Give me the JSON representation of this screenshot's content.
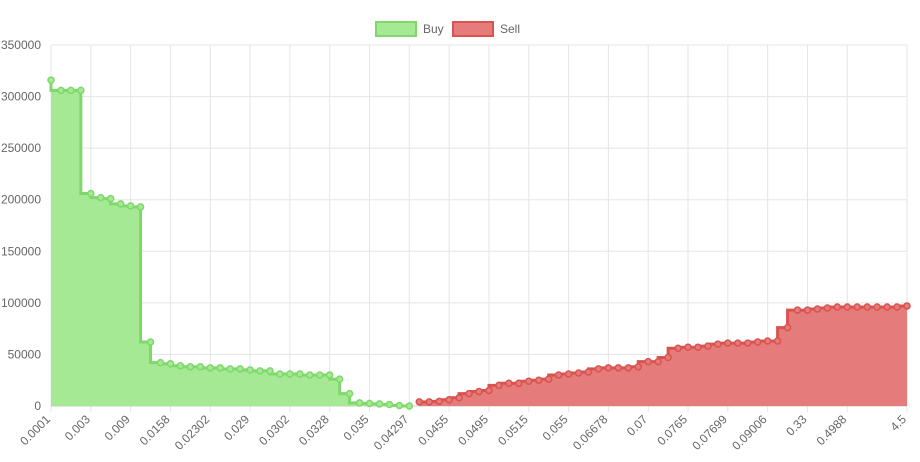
{
  "chart_data": {
    "type": "stepped-area",
    "categories": [
      "0.0001",
      null,
      null,
      null,
      "0.003",
      null,
      null,
      null,
      "0.009",
      null,
      null,
      null,
      "0.0158",
      null,
      null,
      null,
      "0.02302",
      null,
      null,
      null,
      "0.029",
      null,
      null,
      null,
      "0.0302",
      null,
      null,
      null,
      "0.0328",
      null,
      null,
      null,
      "0.035",
      null,
      null,
      null,
      "0.04297",
      null,
      null,
      null,
      "0.0455",
      null,
      null,
      null,
      "0.0495",
      null,
      null,
      null,
      "0.0515",
      null,
      null,
      null,
      "0.055",
      null,
      null,
      null,
      "0.06678",
      null,
      null,
      null,
      "0.07",
      null,
      null,
      null,
      "0.0765",
      null,
      null,
      null,
      "0.07699",
      null,
      null,
      null,
      "0.09006",
      null,
      null,
      null,
      "0.33",
      null,
      null,
      null,
      "0.4988",
      null,
      null,
      null,
      null,
      null,
      "4.5"
    ],
    "series": [
      {
        "name": "Buy",
        "color": "#7fd86b",
        "fill": "#a5e994",
        "values": [
          316000,
          306000,
          306000,
          306000,
          206000,
          202000,
          201000,
          196000,
          194000,
          193000,
          62000,
          42000,
          41000,
          39000,
          38000,
          38000,
          37000,
          37000,
          36000,
          36000,
          35000,
          34000,
          34000,
          31000,
          31000,
          31000,
          30000,
          30000,
          30000,
          26000,
          12000,
          3000,
          2500,
          2000,
          1500,
          500,
          0,
          null,
          null,
          null,
          null,
          null,
          null,
          null,
          null,
          null,
          null,
          null,
          null,
          null,
          null,
          null,
          null,
          null,
          null,
          null,
          null,
          null,
          null,
          null,
          null,
          null,
          null,
          null,
          null,
          null,
          null,
          null,
          null,
          null,
          null,
          null,
          null,
          null,
          null,
          null,
          null,
          null,
          null,
          null,
          null,
          null,
          null,
          null,
          null,
          null,
          null
        ]
      },
      {
        "name": "Sell",
        "color": "#d9534f",
        "fill": "#e57b7b",
        "values": [
          null,
          null,
          null,
          null,
          null,
          null,
          null,
          null,
          null,
          null,
          null,
          null,
          null,
          null,
          null,
          null,
          null,
          null,
          null,
          null,
          null,
          null,
          null,
          null,
          null,
          null,
          null,
          null,
          null,
          null,
          null,
          null,
          null,
          null,
          null,
          null,
          null,
          4000,
          4000,
          4500,
          6000,
          8000,
          12000,
          14000,
          15000,
          20000,
          22000,
          22000,
          24000,
          25000,
          26000,
          30000,
          31000,
          32000,
          33000,
          36000,
          37000,
          37000,
          37000,
          38000,
          43000,
          43000,
          47000,
          56000,
          57000,
          57000,
          58000,
          60000,
          61000,
          61000,
          61000,
          62000,
          63000,
          63000,
          76000,
          93000,
          93000,
          94000,
          95000,
          96000,
          96000,
          96000,
          96000,
          96000,
          96000,
          96000,
          97000
        ]
      }
    ],
    "ylim": [
      0,
      350000
    ],
    "yticks": [
      0,
      50000,
      100000,
      150000,
      200000,
      250000,
      300000,
      350000
    ],
    "grid": true,
    "legend": "top"
  }
}
